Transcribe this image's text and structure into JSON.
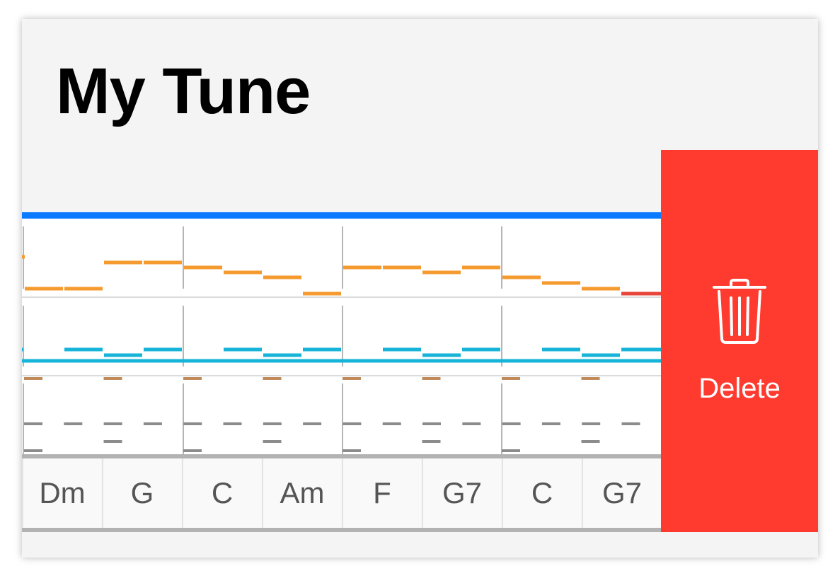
{
  "tune": {
    "title": "My Tune"
  },
  "actions": {
    "delete_label": "Delete",
    "delete_icon": "trash-icon"
  },
  "chords": [
    "Dm",
    "G",
    "C",
    "Am",
    "F",
    "G7",
    "C",
    "G7"
  ],
  "colors": {
    "card_bg": "#f4f4f4",
    "accent": "#0a7aff",
    "melody": "#f59a2e",
    "melody_last": "#e8443a",
    "bass": "#15b4d8",
    "drum_high": "#c08a5a",
    "drum_mid": "#8c8c8c",
    "delete_bg": "#ff3b30"
  }
}
